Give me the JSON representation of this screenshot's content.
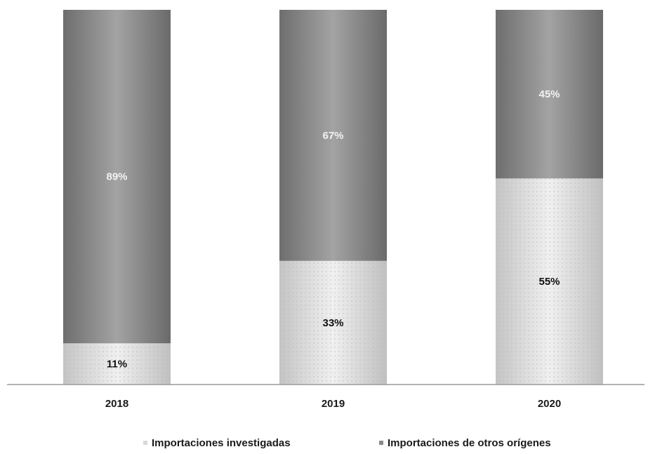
{
  "chart_data": {
    "type": "bar",
    "stacked": true,
    "percent": true,
    "categories": [
      "2018",
      "2019",
      "2020"
    ],
    "series": [
      {
        "name": "Importaciones investigadas",
        "values": [
          11,
          33,
          55
        ],
        "labels": [
          "11%",
          "33%",
          "55%"
        ],
        "color": "#d6d6d6",
        "label_color": "#111111"
      },
      {
        "name": "Importaciones de otros orígenes",
        "values": [
          89,
          67,
          45
        ],
        "labels": [
          "89%",
          "67%",
          "45%"
        ],
        "color": "#808080",
        "label_color": "#f2f2f2"
      }
    ],
    "ylim": [
      0,
      100
    ],
    "grid": false,
    "legend": "bottom"
  }
}
